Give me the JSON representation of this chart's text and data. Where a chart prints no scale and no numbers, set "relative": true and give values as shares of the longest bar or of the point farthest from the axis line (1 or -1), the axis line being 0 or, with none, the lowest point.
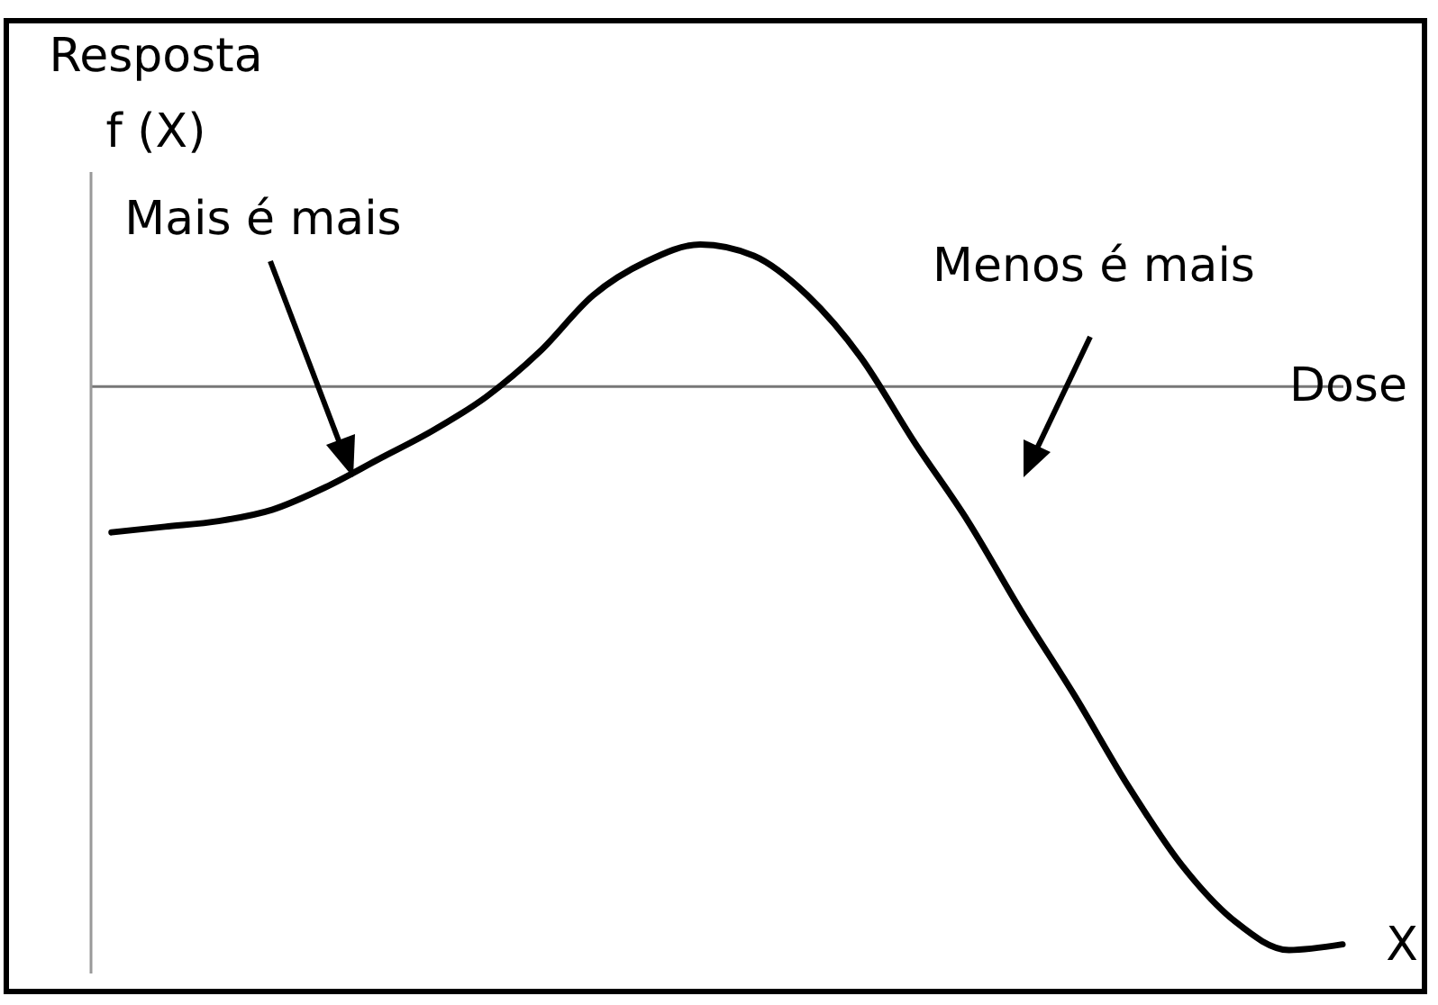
{
  "chart_data": {
    "type": "line",
    "relative": true,
    "color": "#000000",
    "xlabel": "Dose",
    "ylabel": "Resposta\nf (X)",
    "annotations": [
      "Mais é mais",
      "Menos é mais",
      "X"
    ],
    "categories": [
      null,
      null,
      null,
      null,
      null,
      null,
      null,
      null,
      null,
      null,
      null,
      null,
      null,
      null,
      null,
      null,
      null,
      null,
      null,
      null,
      null,
      null,
      null,
      null
    ],
    "values": [
      -0.26,
      -0.25,
      -0.24,
      -0.22,
      -0.18,
      -0.13,
      -0.08,
      -0.02,
      0.06,
      0.16,
      0.22,
      0.25,
      0.23,
      0.16,
      0.05,
      -0.1,
      -0.24,
      -0.4,
      -0.55,
      -0.71,
      -0.85,
      -0.95,
      -1,
      -0.99
    ]
  }
}
